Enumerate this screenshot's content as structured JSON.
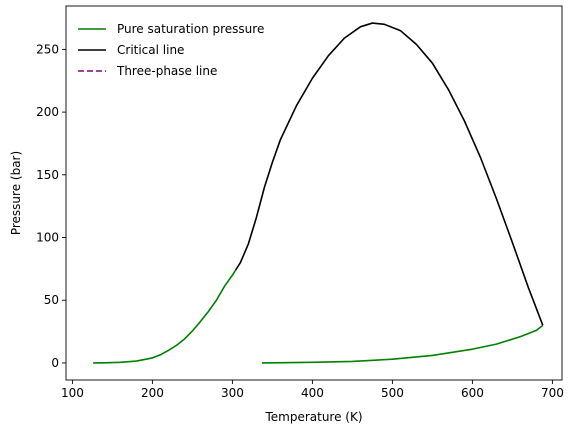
{
  "chart_data": {
    "type": "line",
    "xlabel": "Temperature (K)",
    "ylabel": "Pressure (bar)",
    "xlim": [
      92,
      712
    ],
    "ylim": [
      -13.6,
      284.6
    ],
    "xticks": [
      100,
      200,
      300,
      400,
      500,
      600,
      700
    ],
    "yticks": [
      0,
      50,
      100,
      150,
      200,
      250
    ],
    "grid": false,
    "legend": {
      "placement": "top-left",
      "entries": [
        {
          "label": "Pure saturation pressure",
          "color": "#008000",
          "style": "solid"
        },
        {
          "label": "Critical line",
          "color": "#000000",
          "style": "solid"
        },
        {
          "label": "Three-phase line",
          "color": "#800080",
          "style": "dashed"
        }
      ]
    },
    "series": [
      {
        "name": "Pure saturation pressure",
        "color": "#008000",
        "style": "solid",
        "segments": [
          {
            "x": [
              126,
              140,
              160,
              180,
              200,
              210,
              220,
              230,
              240,
              250,
              260,
              270,
              280,
              290,
              300,
              304
            ],
            "y": [
              0,
              0.1,
              0.5,
              1.5,
              4,
              6.5,
              10,
              14,
              19,
              25.5,
              33,
              41,
              50,
              61,
              70,
              74
            ]
          },
          {
            "x": [
              337,
              350,
              400,
              450,
              500,
              550,
              600,
              630,
              660,
              680,
              688
            ],
            "y": [
              0,
              0.1,
              0.5,
              1.2,
              3,
              6,
              11,
              15,
              21,
              26,
              30
            ]
          }
        ]
      },
      {
        "name": "Critical line",
        "color": "#000000",
        "style": "solid",
        "segments": [
          {
            "x": [
              304,
              310,
              320,
              330,
              340,
              350,
              360,
              380,
              400,
              420,
              440,
              460,
              475,
              490,
              510,
              530,
              550,
              570,
              590,
              610,
              630,
              650,
              670,
              688
            ],
            "y": [
              74,
              80,
              95,
              116,
              140,
              160,
              178,
              205,
              227,
              245,
              259,
              268,
              271,
              270,
              265,
              254,
              239,
              218,
              193,
              164,
              131,
              96,
              60,
              30
            ]
          }
        ]
      },
      {
        "name": "Three-phase line",
        "color": "#800080",
        "style": "dashed",
        "segments": []
      }
    ]
  }
}
